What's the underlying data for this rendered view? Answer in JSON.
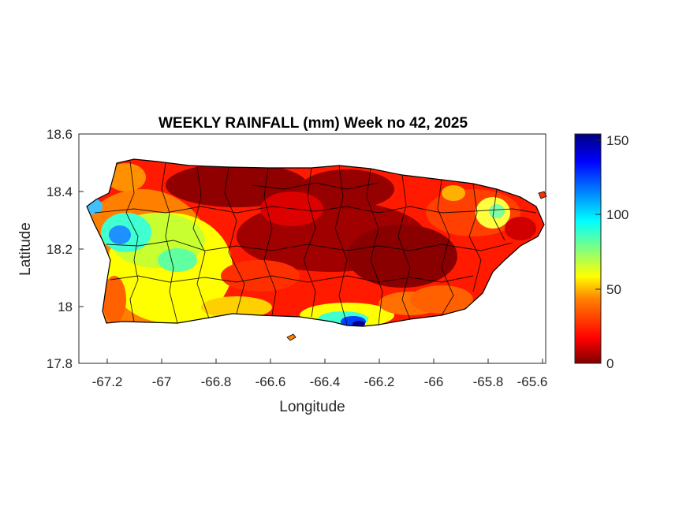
{
  "title": "WEEKLY RAINFALL (mm) Week no 42, 2025",
  "xlabel": "Longitude",
  "ylabel": "Latitude",
  "xticks": [
    -67.2,
    -67,
    -66.8,
    -66.6,
    -66.4,
    -66.2,
    -66,
    -65.8,
    -65.6
  ],
  "xtick_labels": [
    "-67.2",
    "-67",
    "-66.8",
    "-66.6",
    "-66.4",
    "-66.2",
    "-66",
    "-65.8",
    "-65.6"
  ],
  "yticks": [
    18.6,
    18.4,
    18.2,
    18,
    17.8
  ],
  "ytick_labels": [
    "18.6",
    "18.4",
    "18.2",
    "18",
    "17.8"
  ],
  "xlim": [
    -67.3,
    -65.59
  ],
  "ylim": [
    17.8,
    18.6
  ],
  "colorbar": {
    "ticks": [
      0,
      50,
      100,
      150
    ],
    "tick_labels": [
      "0",
      "50",
      "100",
      "150"
    ],
    "range": [
      0,
      154
    ],
    "colormap": "jet-reversed",
    "colors": [
      "#800000",
      "#ff0000",
      "#ff8000",
      "#ffff00",
      "#80ff80",
      "#00ffff",
      "#0080ff",
      "#0000ff",
      "#000080"
    ]
  },
  "map": {
    "region": "Puerto Rico",
    "max_rain_area": "west coast and south coast near -66.3 (blue/cyan)",
    "min_rain_area": "north-central and central interior (dark red)"
  }
}
